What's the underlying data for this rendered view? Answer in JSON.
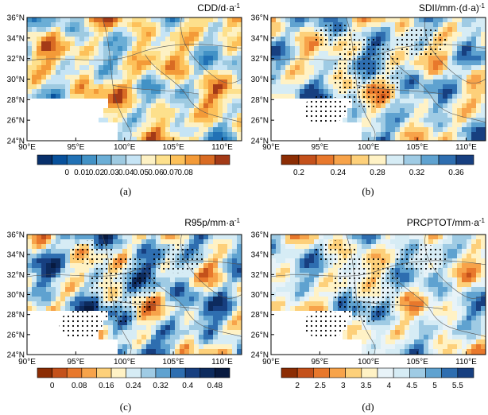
{
  "figure": {
    "panels": [
      {
        "id": "a",
        "letter": "(a)",
        "title": "CDD/d·a",
        "title_sup": "-1",
        "cmap": "diverging",
        "levels": [
          "0",
          "0.01",
          "0.02",
          "0.03",
          "0.04",
          "0.05",
          "0.06",
          "0.07",
          "0.08"
        ],
        "colors": [
          "#08306b",
          "#08519c",
          "#2171b5",
          "#4292c6",
          "#6baed6",
          "#9ecae1",
          "#c6e4f5",
          "#fdf1c4",
          "#fde08c",
          "#fdc15a",
          "#f39a38",
          "#d96b23",
          "#a33a17"
        ],
        "bias": -0.2,
        "stipple": false
      },
      {
        "id": "b",
        "letter": "(b)",
        "title": "SDII/mm·(d·a)",
        "title_sup": "-1",
        "cmap": "warm-to-cool",
        "levels": [
          "0.2",
          "0.24",
          "0.28",
          "0.32",
          "0.36"
        ],
        "colors": [
          "#8c2d04",
          "#c4511b",
          "#e8782c",
          "#f7a34a",
          "#fdd07a",
          "#fff2c5",
          "#d6ecf5",
          "#9fcbe4",
          "#5fa2d0",
          "#2e6eb0",
          "#173f80"
        ],
        "bias": 0.25,
        "stipple": true
      },
      {
        "id": "c",
        "letter": "(c)",
        "title": "R95p/mm·a",
        "title_sup": "-1",
        "cmap": "warm-to-cool",
        "levels": [
          "0",
          "0.08",
          "0.16",
          "0.24",
          "0.32",
          "0.4",
          "0.48"
        ],
        "colors": [
          "#8c2d04",
          "#c4511b",
          "#e8782c",
          "#f7a34a",
          "#fdd07a",
          "#fff2c5",
          "#d6ecf5",
          "#9fcbe4",
          "#5fa2d0",
          "#2e6eb0",
          "#173f80",
          "#0d2b5e",
          "#081a40"
        ],
        "bias": 0.1,
        "stipple": true
      },
      {
        "id": "d",
        "letter": "(d)",
        "title": "PRCPTOT/mm·a",
        "title_sup": "-1",
        "cmap": "warm-to-cool",
        "levels": [
          "2",
          "2.5",
          "3",
          "3.5",
          "4",
          "4.5",
          "5",
          "5.5"
        ],
        "colors": [
          "#8c2d04",
          "#c4511b",
          "#e8782c",
          "#f7a34a",
          "#fdd07a",
          "#fff2c5",
          "#e8f3f8",
          "#d6ecf5",
          "#9fcbe4",
          "#5fa2d0",
          "#2e6eb0",
          "#173f80"
        ],
        "bias": 0.2,
        "stipple": true
      }
    ],
    "lat_ticks": [
      "24°N",
      "26°N",
      "28°N",
      "30°N",
      "32°N",
      "34°N",
      "36°N"
    ],
    "lon_ticks": [
      "90°E",
      "95°E",
      "100°E",
      "105°E",
      "110°E"
    ],
    "missing_color": "#ffffff"
  },
  "chart_data": {
    "type": "heatmap",
    "description_free": true,
    "panels": [
      {
        "id": "a",
        "variable": "CDD",
        "unit": "d·a-1",
        "colorbar_ticks": [
          0,
          0.01,
          0.02,
          0.03,
          0.04,
          0.05,
          0.06,
          0.07,
          0.08
        ]
      },
      {
        "id": "b",
        "variable": "SDII",
        "unit": "mm·(d·a)-1",
        "colorbar_ticks": [
          0.2,
          0.24,
          0.28,
          0.32,
          0.36
        ]
      },
      {
        "id": "c",
        "variable": "R95p",
        "unit": "mm·a-1",
        "colorbar_ticks": [
          0,
          0.08,
          0.16,
          0.24,
          0.32,
          0.4,
          0.48
        ]
      },
      {
        "id": "d",
        "variable": "PRCPTOT",
        "unit": "mm·a-1",
        "colorbar_ticks": [
          2,
          2.5,
          3,
          3.5,
          4,
          4.5,
          5,
          5.5
        ]
      }
    ],
    "lon_range": [
      90,
      112
    ],
    "lat_range": [
      24,
      36
    ]
  }
}
